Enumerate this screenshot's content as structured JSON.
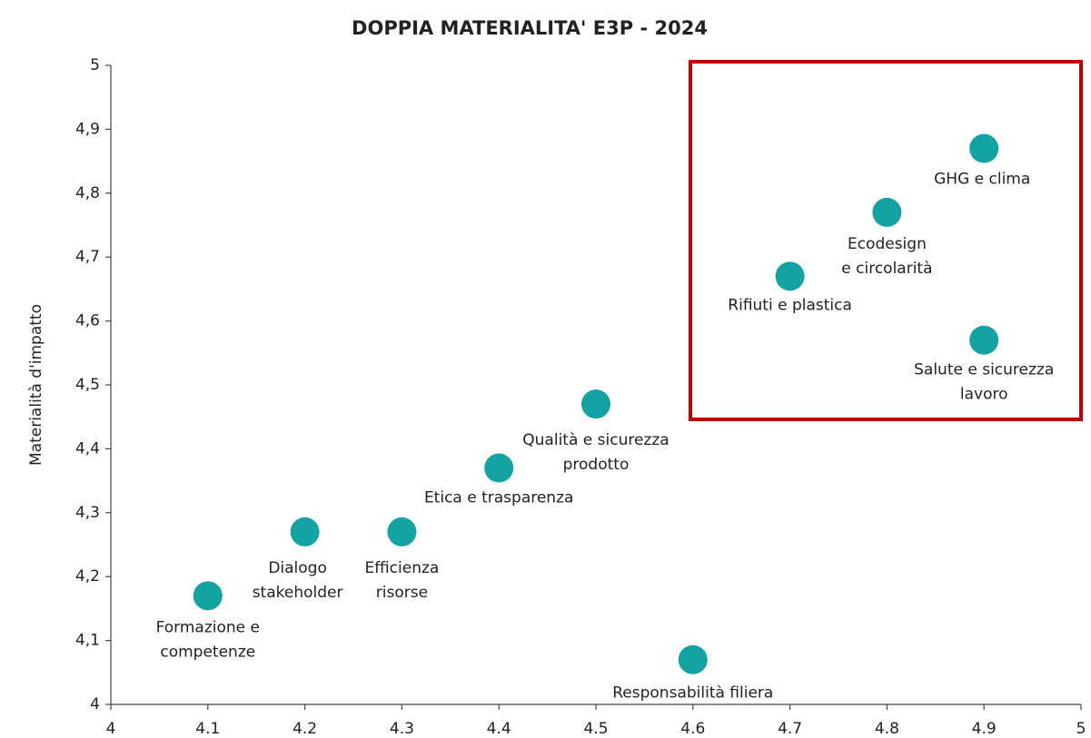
{
  "chart_data": {
    "type": "scatter",
    "title": "DOPPIA MATERIALITA' E3P - 2024",
    "y_label": "Materialità d'impatto",
    "x": [
      4.1,
      4.2,
      4.3,
      4.4,
      4.5,
      4.6,
      4.7,
      4.8,
      4.9,
      4.9
    ],
    "values": [
      4.17,
      4.27,
      4.27,
      4.37,
      4.47,
      4.07,
      4.67,
      4.77,
      4.87,
      4.57
    ],
    "labels": [
      [
        "Formazione e",
        "competenze"
      ],
      [
        "Dialogo",
        "stakeholder"
      ],
      [
        "Efficienza",
        "risorse"
      ],
      [
        "Etica e trasparenza"
      ],
      [
        "Qualità e sicurezza",
        "prodotto"
      ],
      [
        "Responsabilità filiera"
      ],
      [
        "Rifiuti e plastica"
      ],
      [
        "Ecodesign",
        "e circolarità"
      ],
      [
        "GHG e clima"
      ],
      [
        "Salute e sicurezza",
        "lavoro"
      ]
    ],
    "color": "#13a3a3",
    "xlim": [
      4,
      5
    ],
    "xticks": [
      4,
      4.1,
      4.2,
      4.3,
      4.4,
      4.5,
      4.6,
      4.7,
      4.8,
      4.9,
      5
    ],
    "ylim": [
      4,
      5
    ],
    "yticks": [
      4,
      {
        "value": 4.1,
        "label": "4,1"
      },
      {
        "value": 4.2,
        "label": "4,2"
      },
      {
        "value": 4.3,
        "label": "4,3"
      },
      {
        "value": 4.4,
        "label": "4,4"
      },
      {
        "value": 4.5,
        "label": "4,5"
      },
      {
        "value": 4.6,
        "label": "4,6"
      },
      {
        "value": 4.7,
        "label": "4,7"
      },
      {
        "value": 4.8,
        "label": "4,8"
      },
      {
        "value": 4.9,
        "label": "4,9"
      },
      5
    ],
    "grid": false
  }
}
